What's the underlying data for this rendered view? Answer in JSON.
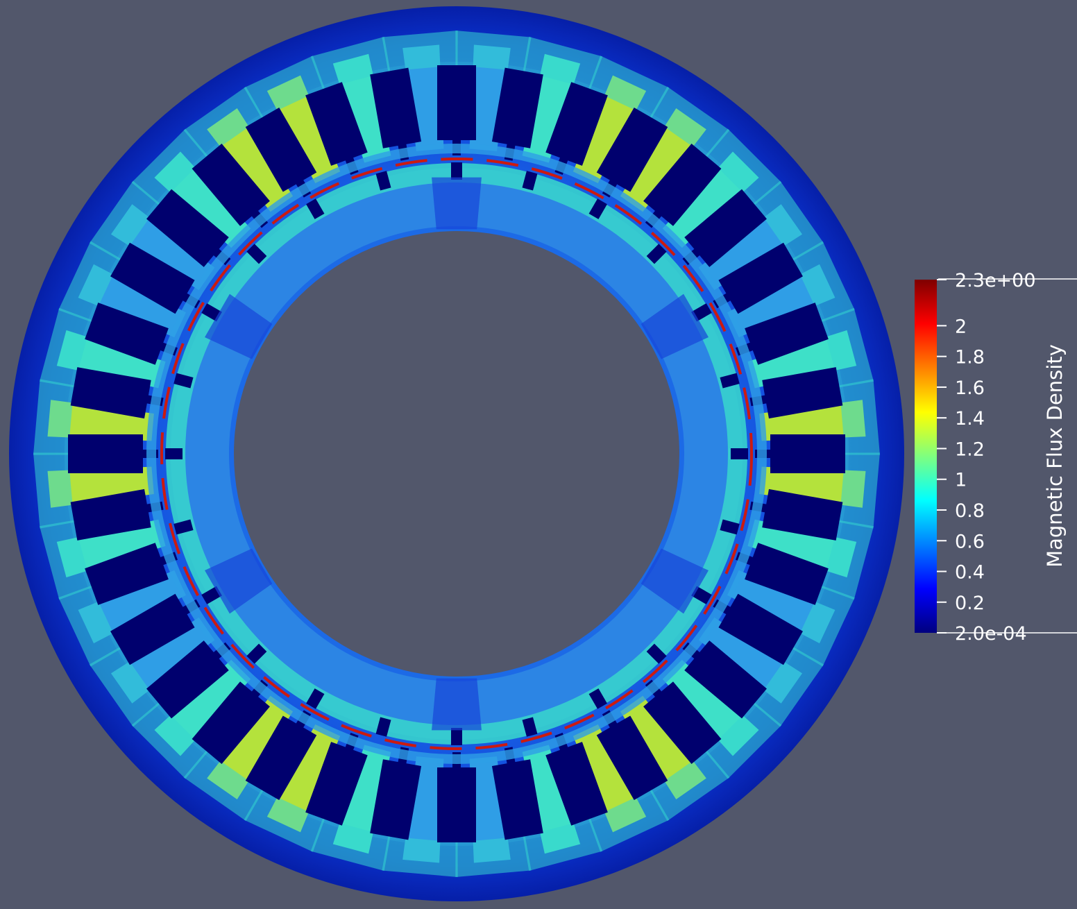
{
  "scalar_bar": {
    "title": "Magnetic Flux Density",
    "range_min_label": "2.0e-04",
    "range_max_label": "2.3e+00",
    "range": [
      0.0002,
      2.3
    ],
    "ticks": [
      {
        "value": 2.3,
        "label": "2.3e+00"
      },
      {
        "value": 2.0,
        "label": "2"
      },
      {
        "value": 1.8,
        "label": "1.8"
      },
      {
        "value": 1.6,
        "label": "1.6"
      },
      {
        "value": 1.4,
        "label": "1.4"
      },
      {
        "value": 1.2,
        "label": "1.2"
      },
      {
        "value": 1.0,
        "label": "1"
      },
      {
        "value": 0.8,
        "label": "0.8"
      },
      {
        "value": 0.6,
        "label": "0.6"
      },
      {
        "value": 0.4,
        "label": "0.4"
      },
      {
        "value": 0.2,
        "label": "0.2"
      },
      {
        "value": 0.0002,
        "label": "2.0e-04"
      }
    ],
    "colormap": [
      "#00007f",
      "#0000ff",
      "#007fff",
      "#00ffff",
      "#7fff7f",
      "#ffff00",
      "#ff7f00",
      "#ff0000",
      "#7f0000"
    ]
  },
  "field_plot": {
    "slot_count": 36,
    "air_gap_count": 24,
    "colors": {
      "background": "#52576b",
      "slot": "#00006e",
      "outer_yoke": "#0a2fd0",
      "stator_mid": "#1a5fe0",
      "rotor": "#2a8ee6",
      "tooth_high": "#b4e23c",
      "tooth_mid": "#3ee0c8",
      "gap_ring": "#cc1a10",
      "ring_cyan": "#34d6cf"
    }
  }
}
